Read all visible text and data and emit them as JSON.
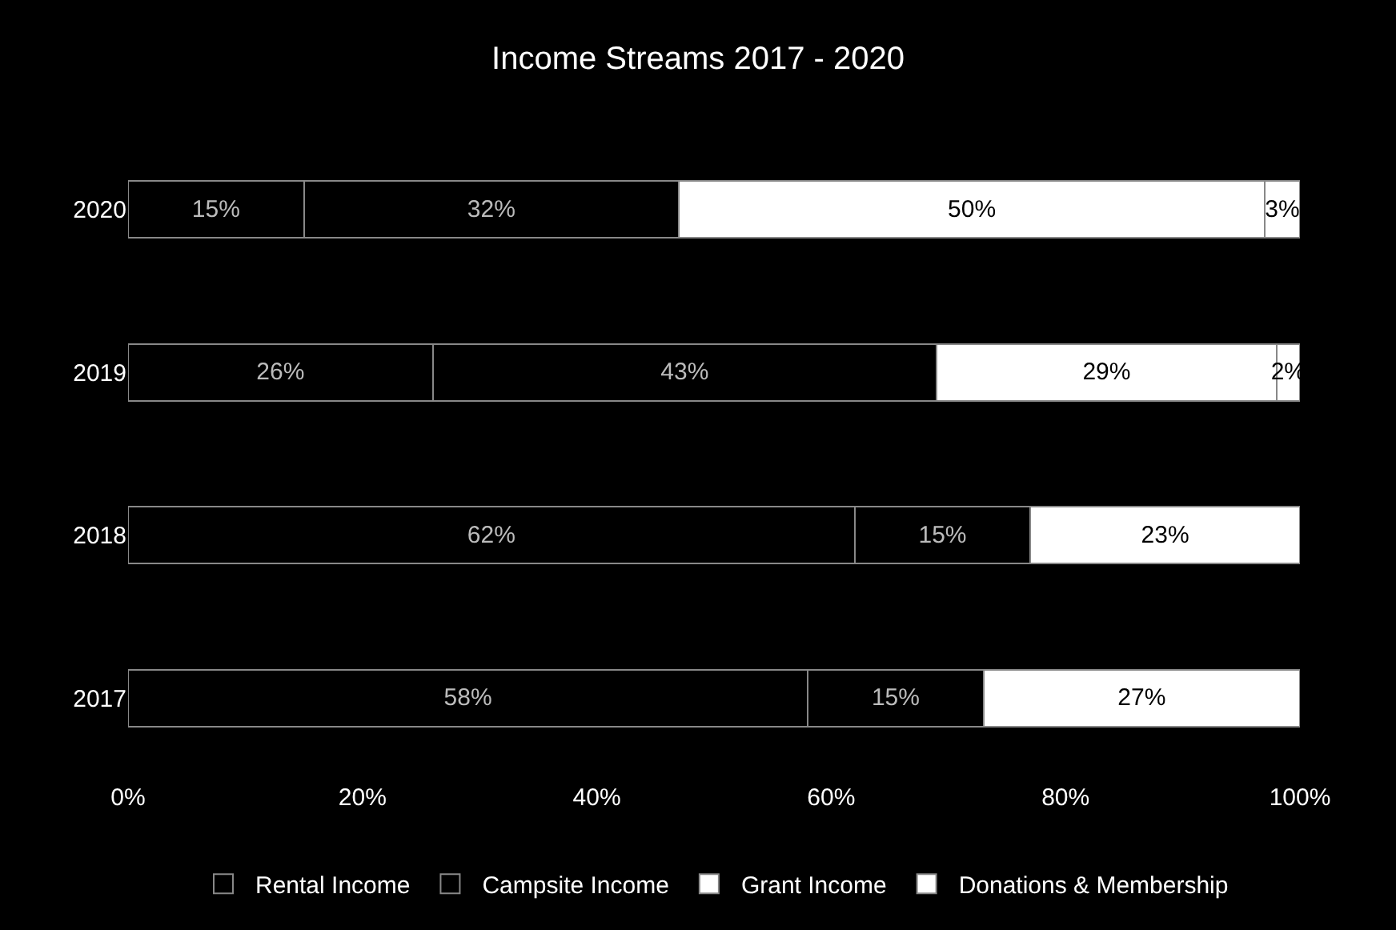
{
  "chart_data": {
    "type": "bar",
    "orientation": "horizontal",
    "stacked": true,
    "title": "Income Streams 2017 - 2020",
    "categories": [
      "2020",
      "2019",
      "2018",
      "2017"
    ],
    "series": [
      {
        "name": "Rental Income",
        "color": "#000000",
        "values": [
          15,
          26,
          62,
          58
        ],
        "value_labels": [
          "15%",
          "26%",
          "62%",
          "58%"
        ]
      },
      {
        "name": "Campsite Income",
        "color": "#000000",
        "values": [
          32,
          43,
          15,
          15
        ],
        "value_labels": [
          "32%",
          "43%",
          "15%",
          "15%"
        ]
      },
      {
        "name": "Grant Income",
        "color": "#ffffff",
        "values": [
          50,
          29,
          23,
          27
        ],
        "value_labels": [
          "50%",
          "29%",
          "23%",
          "27%"
        ]
      },
      {
        "name": "Donations & Membership",
        "color": "#ffffff",
        "values": [
          3,
          2,
          null,
          null
        ],
        "value_labels": [
          "3%",
          "2%",
          null,
          null
        ]
      }
    ],
    "xlim": [
      0,
      100
    ],
    "xticks": [
      {
        "value": 0,
        "label": "0%"
      },
      {
        "value": 20,
        "label": "20%"
      },
      {
        "value": 40,
        "label": "40%"
      },
      {
        "value": 60,
        "label": "60%"
      },
      {
        "value": 80,
        "label": "80%"
      },
      {
        "value": 100,
        "label": "100%"
      }
    ],
    "grid": false,
    "legend": "bottom"
  }
}
